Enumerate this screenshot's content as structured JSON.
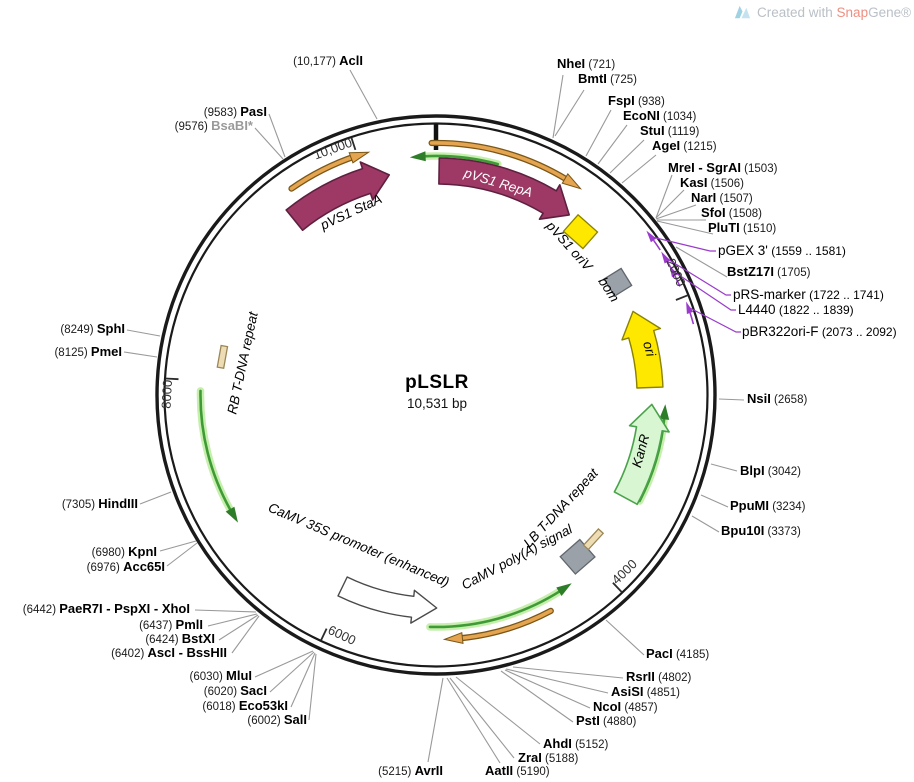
{
  "plasmid": {
    "name": "pLSLR",
    "size": "10,531 bp"
  },
  "watermark": {
    "prefix": "Created with ",
    "brand_snap": "Snap",
    "brand_gene": "Gene®"
  },
  "ticks": [
    "10,000",
    "2000",
    "4000",
    "6000",
    "8000"
  ],
  "features": [
    "pVS1 StaA",
    "pVS1 RepA",
    "pVS1 oriV",
    "bom",
    "ori",
    "KanR",
    "LB T-DNA repeat",
    "CaMV poly(A) signal",
    "CaMV 35S promoter (enhanced)",
    "RB T-DNA repeat"
  ],
  "sites_right": [
    {
      "name": "NheI",
      "pos": "(721)"
    },
    {
      "name": "BmtI",
      "pos": "(725)"
    },
    {
      "name": "FspI",
      "pos": "(938)"
    },
    {
      "name": "EcoNI",
      "pos": "(1034)"
    },
    {
      "name": "StuI",
      "pos": "(1119)"
    },
    {
      "name": "AgeI",
      "pos": "(1215)"
    },
    {
      "name": "MreI - SgrAI",
      "pos": "(1503)"
    },
    {
      "name": "KasI",
      "pos": "(1506)"
    },
    {
      "name": "NarI",
      "pos": "(1507)"
    },
    {
      "name": "SfoI",
      "pos": "(1508)"
    },
    {
      "name": "PluTI",
      "pos": "(1510)"
    },
    {
      "name": "BstZ17I",
      "pos": "(1705)"
    },
    {
      "name": "NsiI",
      "pos": "(2658)"
    },
    {
      "name": "BlpI",
      "pos": "(3042)"
    },
    {
      "name": "PpuMI",
      "pos": "(3234)"
    },
    {
      "name": "Bpu10I",
      "pos": "(3373)"
    },
    {
      "name": "PacI",
      "pos": "(4185)"
    },
    {
      "name": "RsrII",
      "pos": "(4802)"
    },
    {
      "name": "AsiSI",
      "pos": "(4851)"
    },
    {
      "name": "NcoI",
      "pos": "(4857)"
    },
    {
      "name": "PstI",
      "pos": "(4880)"
    },
    {
      "name": "AhdI",
      "pos": "(5152)"
    },
    {
      "name": "ZraI",
      "pos": "(5188)"
    },
    {
      "name": "AatII",
      "pos": "(5190)"
    }
  ],
  "sites_left": [
    {
      "pos": "(5215)",
      "name": "AvrII"
    },
    {
      "pos": "(10,177)",
      "name": "AclI"
    },
    {
      "pos": "(9583)",
      "name": "PasI"
    },
    {
      "pos": "(9576)",
      "name": "BsaBI*"
    },
    {
      "pos": "(8249)",
      "name": "SphI"
    },
    {
      "pos": "(8125)",
      "name": "PmeI"
    },
    {
      "pos": "(7305)",
      "name": "HindIII"
    },
    {
      "pos": "(6980)",
      "name": "KpnI"
    },
    {
      "pos": "(6976)",
      "name": "Acc65I"
    },
    {
      "pos": "(6442)",
      "name": "PaeR7I - PspXI - XhoI"
    },
    {
      "pos": "(6437)",
      "name": "PmlI"
    },
    {
      "pos": "(6424)",
      "name": "BstXI"
    },
    {
      "pos": "(6402)",
      "name": "AscI - BssHII"
    },
    {
      "pos": "(6030)",
      "name": "MluI"
    },
    {
      "pos": "(6020)",
      "name": "SacI"
    },
    {
      "pos": "(6018)",
      "name": "Eco53kI"
    },
    {
      "pos": "(6002)",
      "name": "SalI"
    }
  ],
  "primers": [
    {
      "name": "pGEX 3'",
      "pos": "(1559 .. 1581)"
    },
    {
      "name": "pRS-marker",
      "pos": "(1722 .. 1741)"
    },
    {
      "name": "L4440",
      "pos": "(1822 .. 1839)"
    },
    {
      "name": "pBR322ori-F",
      "pos": "(2073 .. 2092)"
    }
  ],
  "colors": {
    "cds_maroon": "#9d3964",
    "cds_maroon_outline": "#5e2040",
    "ori_yellow": "#ffe800",
    "ori_yellow_outline": "#8a8200",
    "misc_gray": "#9aa1a9",
    "misc_gray_outline": "#61666d",
    "kanr_fill": "#d8f6d1",
    "kanr_outline": "#4aa34b",
    "tdna_tan": "#eedcb4",
    "tdna_tan_outline": "#9b8756",
    "promoter_white": "#ffffff",
    "promoter_outline": "#4a4a4a",
    "orf_orange": "#e5a44f",
    "orf_orange_outline": "#7a5718",
    "orf_green": "#3f9b35",
    "orf_green_dark": "#2e7d28",
    "orf_green_glow": "#c6efad",
    "primer_purple": "#9a3bcc",
    "primer_label_magenta": "#b843bd",
    "backbone": "#1a1a1a"
  }
}
